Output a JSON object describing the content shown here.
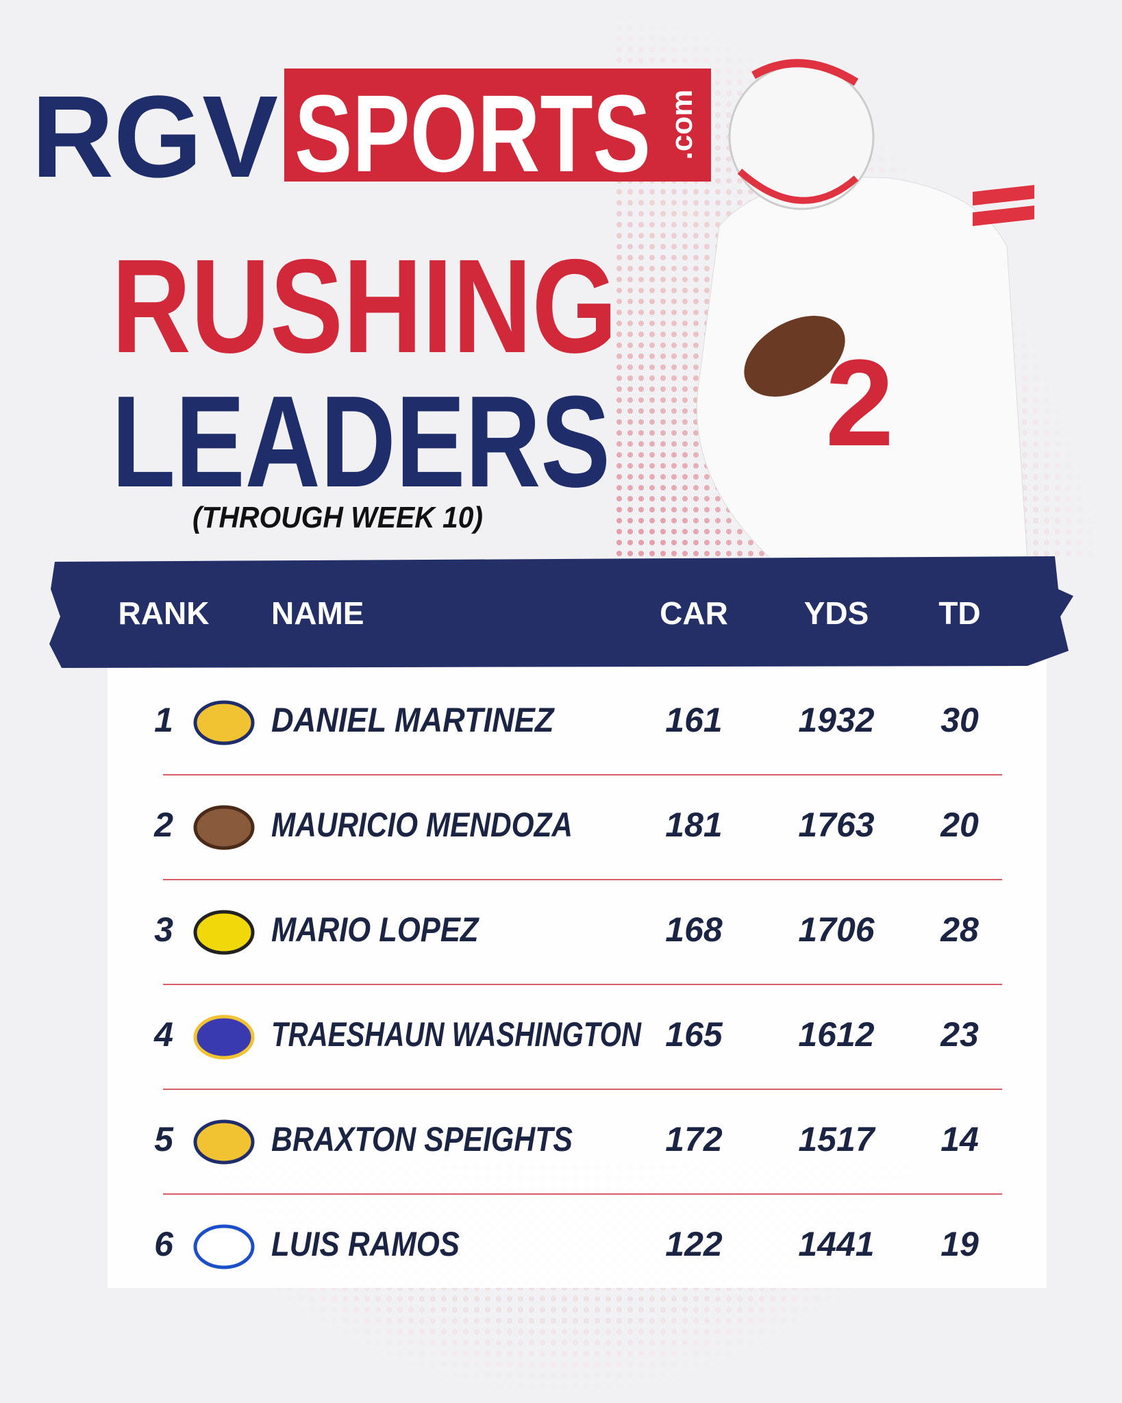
{
  "header": {
    "logo": {
      "left": "RGV",
      "right": "SPORTS",
      "suffix": ".com"
    },
    "title": [
      "RUSHING",
      "LEADERS"
    ],
    "subtitle": "(THROUGH WEEK 10)"
  },
  "table": {
    "columns": [
      "RANK",
      "NAME",
      "CAR",
      "YDS",
      "TD"
    ],
    "rows": [
      [
        1,
        "DANIEL MARTINEZ",
        161,
        1932,
        30
      ],
      [
        2,
        "MAURICIO MENDOZA",
        181,
        1763,
        20
      ],
      [
        3,
        "MARIO LOPEZ",
        168,
        1706,
        28
      ],
      [
        4,
        "TRAESHAUN WASHINGTON",
        165,
        1612,
        23
      ],
      [
        5,
        "BRAXTON SPEIGHTS",
        172,
        1517,
        14
      ],
      [
        6,
        "LUIS RAMOS",
        122,
        1441,
        19
      ]
    ]
  }
}
